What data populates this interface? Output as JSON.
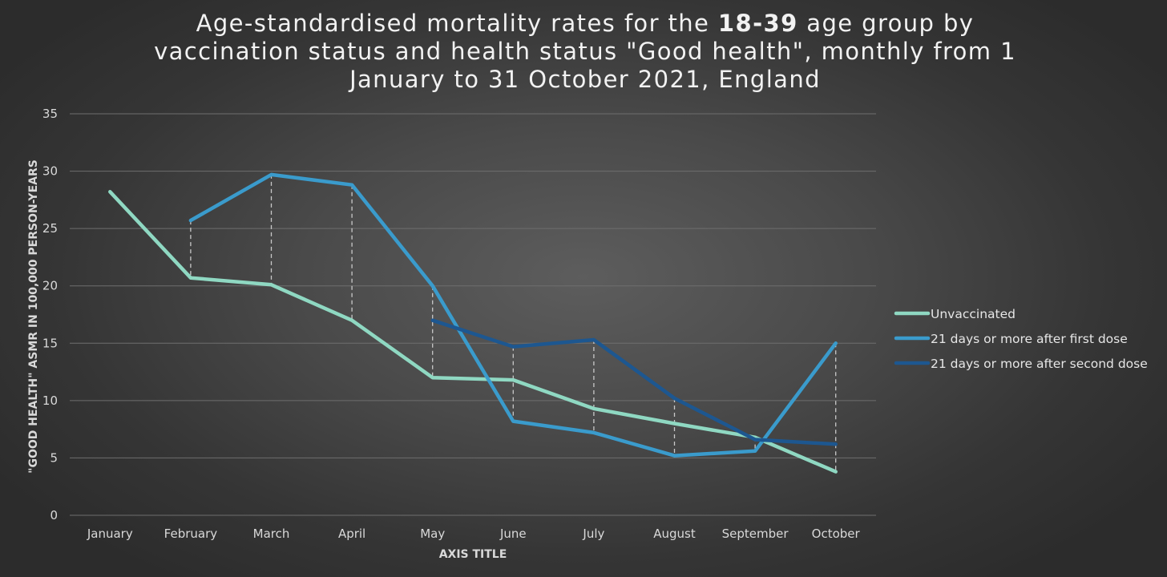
{
  "chart_data": {
    "type": "line",
    "title": {
      "before": "Age-standardised mortality rates for the ",
      "bold": "18-39",
      "after": " age group by vaccination status and health status \"Good health\", monthly from 1 January to 31 October 2021, England"
    },
    "xlabel": "AXIS TITLE",
    "ylabel": "\"GOOD HEALTH\" ASMR IN 100,000 PERSON-YEARS",
    "categories": [
      "January",
      "February",
      "March",
      "April",
      "May",
      "June",
      "July",
      "August",
      "September",
      "October"
    ],
    "ylim": [
      0,
      35
    ],
    "yticks": [
      "0",
      "5",
      "10",
      "15",
      "20",
      "25",
      "30",
      "35"
    ],
    "grid": "horizontal",
    "legend_position": "right",
    "drop_lines": true,
    "series": [
      {
        "name": "Unvaccinated",
        "color": "#8fd8c2",
        "values": [
          28.2,
          20.7,
          20.1,
          17.0,
          12.0,
          11.8,
          9.3,
          8.0,
          6.8,
          3.8
        ]
      },
      {
        "name": "21 days or more after first dose",
        "color": "#3a9bcc",
        "values": [
          null,
          25.7,
          29.7,
          28.8,
          20.0,
          8.2,
          7.2,
          5.2,
          5.6,
          15.0
        ]
      },
      {
        "name": "21 days or more after second dose",
        "color": "#1d5790",
        "values": [
          null,
          null,
          null,
          null,
          17.0,
          14.7,
          15.3,
          10.2,
          6.6,
          6.2
        ]
      }
    ]
  }
}
